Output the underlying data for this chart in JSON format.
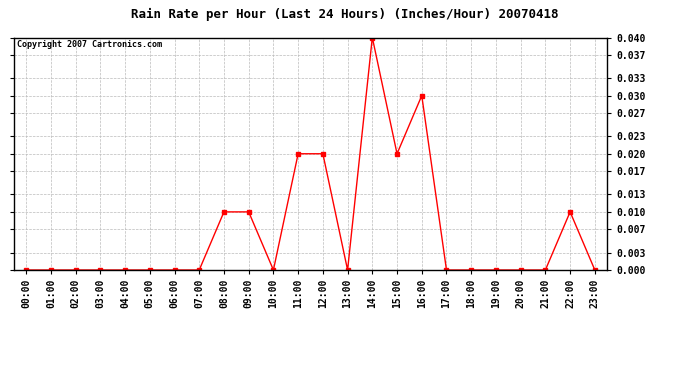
{
  "title": "Rain Rate per Hour (Last 24 Hours) (Inches/Hour) 20070418",
  "copyright": "Copyright 2007 Cartronics.com",
  "x_labels": [
    "00:00",
    "01:00",
    "02:00",
    "03:00",
    "04:00",
    "05:00",
    "06:00",
    "07:00",
    "08:00",
    "09:00",
    "10:00",
    "11:00",
    "12:00",
    "13:00",
    "14:00",
    "15:00",
    "16:00",
    "17:00",
    "18:00",
    "19:00",
    "20:00",
    "21:00",
    "22:00",
    "23:00"
  ],
  "y_values": [
    0.0,
    0.0,
    0.0,
    0.0,
    0.0,
    0.0,
    0.0,
    0.0,
    0.01,
    0.01,
    0.0,
    0.02,
    0.02,
    0.0,
    0.04,
    0.02,
    0.03,
    0.0,
    0.0,
    0.0,
    0.0,
    0.0,
    0.01,
    0.0
  ],
  "line_color": "#ff0000",
  "marker": "s",
  "marker_size": 2.5,
  "bg_color": "#ffffff",
  "plot_bg_color": "#ffffff",
  "grid_color": "#bbbbbb",
  "title_fontsize": 9,
  "copyright_fontsize": 6,
  "tick_fontsize": 7,
  "ylim": [
    0.0,
    0.04
  ],
  "yticks": [
    0.0,
    0.003,
    0.007,
    0.01,
    0.013,
    0.017,
    0.02,
    0.023,
    0.027,
    0.03,
    0.033,
    0.037,
    0.04
  ]
}
